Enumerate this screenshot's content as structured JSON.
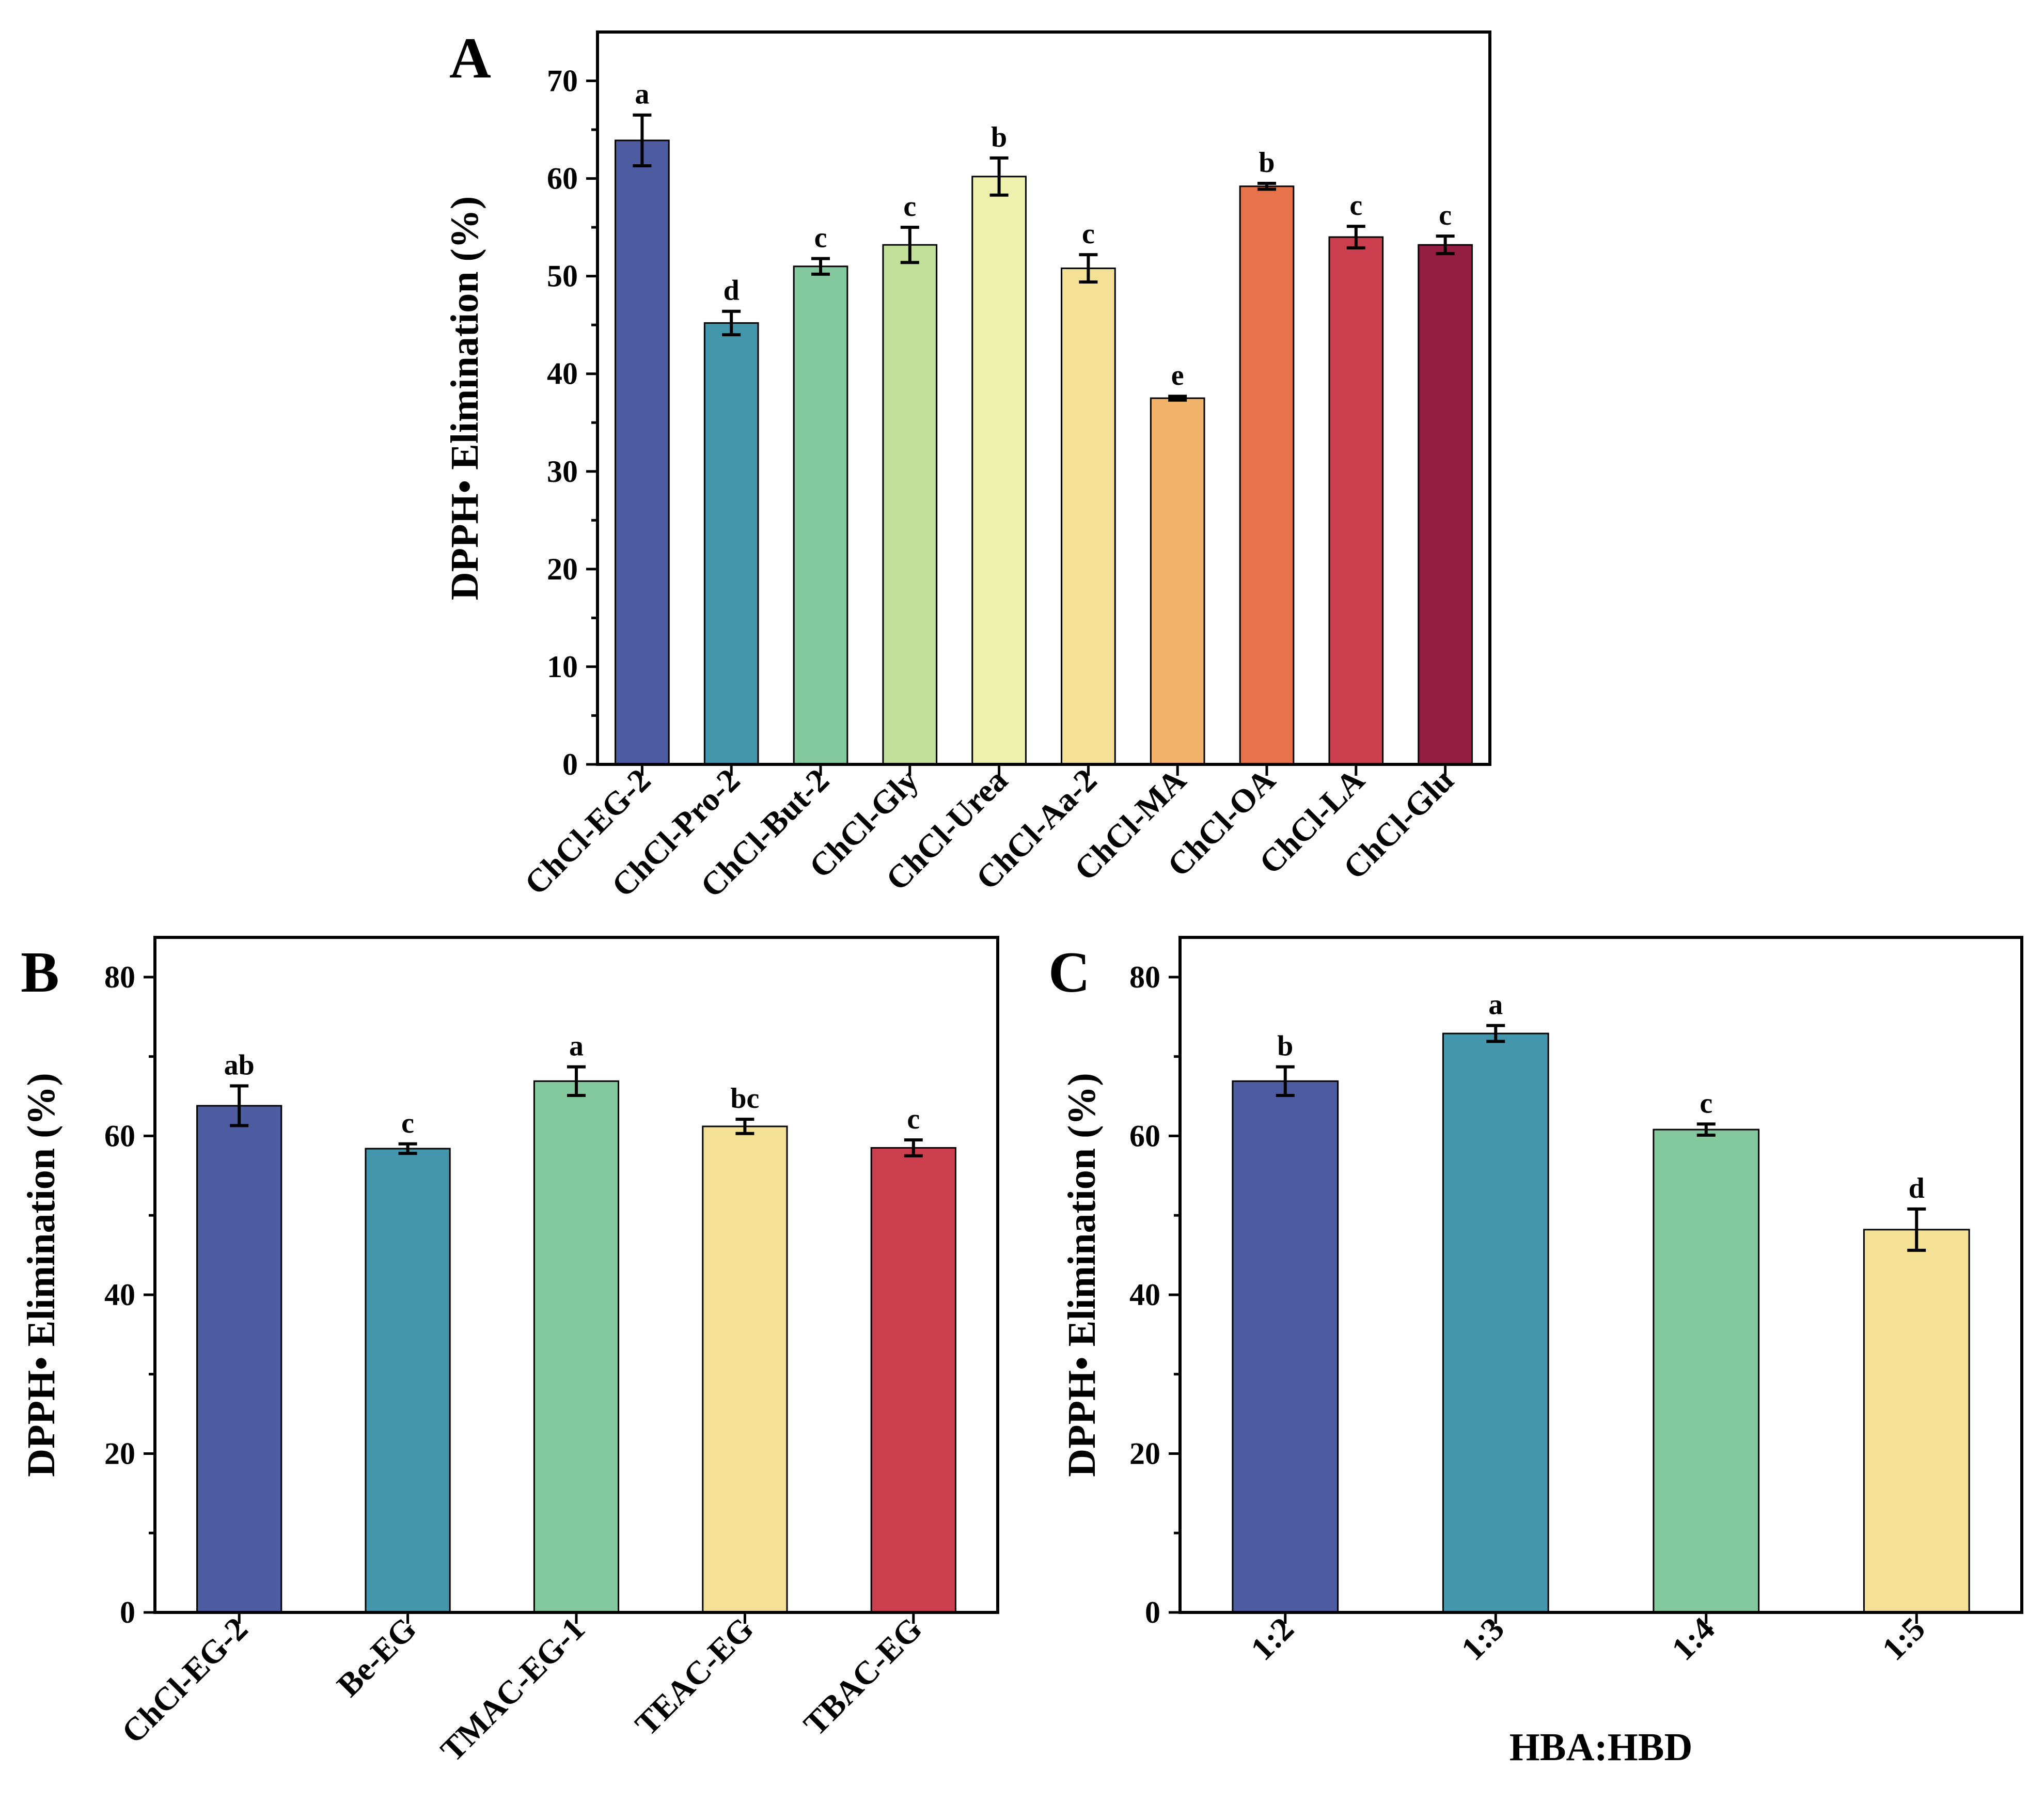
{
  "chart_data": [
    {
      "panel": "A",
      "type": "bar",
      "ylabel": "DPPH• Elimination (%)",
      "xlabel": "",
      "ylim": [
        0,
        75
      ],
      "yticks": [
        0,
        10,
        20,
        30,
        40,
        50,
        60,
        70
      ],
      "categories": [
        "ChCl-EG-2",
        "ChCl-Pro-2",
        "ChCl-But-2",
        "ChCl-Gly",
        "ChCl-Urea",
        "ChCl-Aa-2",
        "ChCl-MA",
        "ChCl-OA",
        "ChCl-LA",
        "ChCl-Glu"
      ],
      "values": [
        63.9,
        45.2,
        51.0,
        53.2,
        60.2,
        50.8,
        37.5,
        59.2,
        54.0,
        53.2
      ],
      "errors": [
        2.6,
        1.2,
        0.8,
        1.8,
        1.9,
        1.4,
        0.2,
        0.3,
        1.1,
        0.9
      ],
      "labels": [
        "a",
        "d",
        "c",
        "c",
        "b",
        "c",
        "e",
        "b",
        "c",
        "c"
      ],
      "colors": [
        "#4d5ba1",
        "#4396ac",
        "#84c89d",
        "#c3e09a",
        "#eef1ae",
        "#f5e195",
        "#f2b46a",
        "#e8724a",
        "#cb3f4e",
        "#951d43"
      ]
    },
    {
      "panel": "B",
      "type": "bar",
      "ylabel": "DPPH• Elimination (%)",
      "xlabel": "",
      "ylim": [
        0,
        85
      ],
      "yticks": [
        0,
        20,
        40,
        60,
        80
      ],
      "categories": [
        "ChCl-EG-2",
        "Be-EG",
        "TMAC-EG-1",
        "TEAC-EG",
        "TBAC-EG"
      ],
      "values": [
        63.8,
        58.4,
        66.9,
        61.2,
        58.5
      ],
      "errors": [
        2.5,
        0.6,
        1.8,
        0.9,
        1.0
      ],
      "labels": [
        "ab",
        "c",
        "a",
        "bc",
        "c"
      ],
      "colors": [
        "#4d5ba1",
        "#4396ac",
        "#84c89d",
        "#f5e195",
        "#cb3f4e"
      ]
    },
    {
      "panel": "C",
      "type": "bar",
      "ylabel": "DPPH• Elimination (%)",
      "xlabel": "HBA:HBD",
      "ylim": [
        0,
        85
      ],
      "yticks": [
        0,
        20,
        40,
        60,
        80
      ],
      "categories": [
        "1:2",
        "1:3",
        "1:4",
        "1:5"
      ],
      "values": [
        66.9,
        72.9,
        60.8,
        48.2
      ],
      "errors": [
        1.8,
        1.0,
        0.7,
        2.6
      ],
      "labels": [
        "b",
        "a",
        "c",
        "d"
      ],
      "colors": [
        "#4d5ba1",
        "#4396ac",
        "#84c89d",
        "#f5e195"
      ]
    }
  ]
}
